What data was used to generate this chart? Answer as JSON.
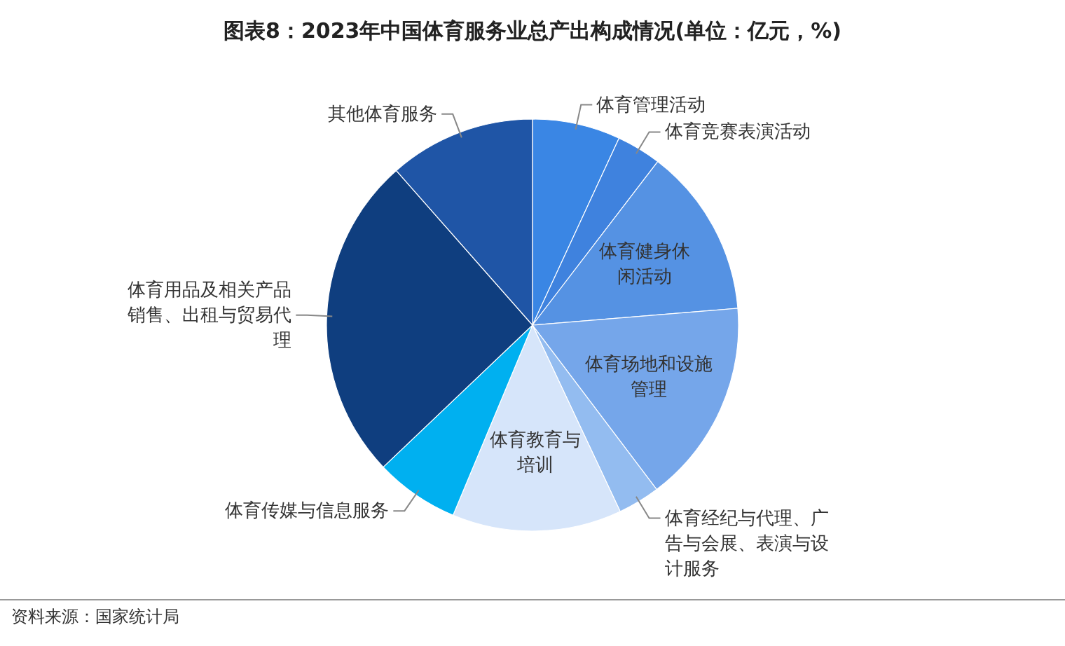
{
  "chart_data": {
    "type": "pie",
    "title": "图表8：2023年中国体育服务业总产出构成情况(单位：亿元，%)",
    "categories": [
      "体育管理活动",
      "体育竞赛表演活动",
      "体育健身休闲活动",
      "体育场地和设施管理",
      "体育经纪与代理、广告与会展、表演与设计服务",
      "体育教育与培训",
      "体育传媒与信息服务",
      "体育用品及相关产品销售、出租与贸易代理",
      "其他体育服务"
    ],
    "values": [
      6.9,
      3.5,
      13.3,
      16.0,
      3.3,
      13.3,
      6.6,
      25.6,
      11.5
    ],
    "colors": [
      "#3a86e4",
      "#3f82de",
      "#5592e3",
      "#75a6ea",
      "#93bcf0",
      "#d6e5fa",
      "#00b0f0",
      "#0f3e7f",
      "#1f55a6"
    ],
    "annotations": [
      "资料来源：国家统计局"
    ]
  }
}
